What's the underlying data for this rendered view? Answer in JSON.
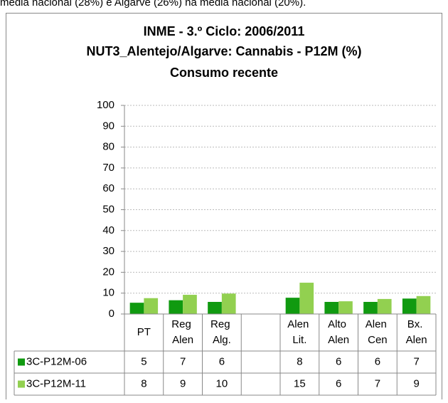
{
  "caption": "média nacional (28%) e Algarve (26%) na média nacional (20%).",
  "chart_data": {
    "type": "bar",
    "title": [
      "INME - 3.º Ciclo: 2006/2011",
      "NUT3_Alentejo/Algarve:  Cannabis - P12M (%)",
      "Consumo recente"
    ],
    "categories": [
      "PT",
      "Reg Alen",
      "Reg Alg.",
      null,
      "Alen Lit.",
      "Alto Alen",
      "Alen Cen",
      "Bx. Alen"
    ],
    "series": [
      {
        "name": "3C-P12M-06",
        "color": "#109a10",
        "values": [
          5.4,
          6.6,
          5.8,
          null,
          7.8,
          5.8,
          5.8,
          7.4
        ],
        "value_labels": [
          "5",
          "7",
          "6",
          null,
          "8",
          "6",
          "6",
          "7"
        ]
      },
      {
        "name": "3C-P12M-11",
        "color": "#92d050",
        "values": [
          7.6,
          9.2,
          9.8,
          null,
          15,
          6.1,
          7.2,
          8.6
        ],
        "value_labels": [
          "8",
          "9",
          "10",
          null,
          "15",
          "6",
          "7",
          "9"
        ]
      }
    ],
    "ylim": [
      0,
      100
    ],
    "yticks": [
      0,
      10,
      20,
      30,
      40,
      50,
      60,
      70,
      80,
      90,
      100
    ],
    "grid": true
  }
}
